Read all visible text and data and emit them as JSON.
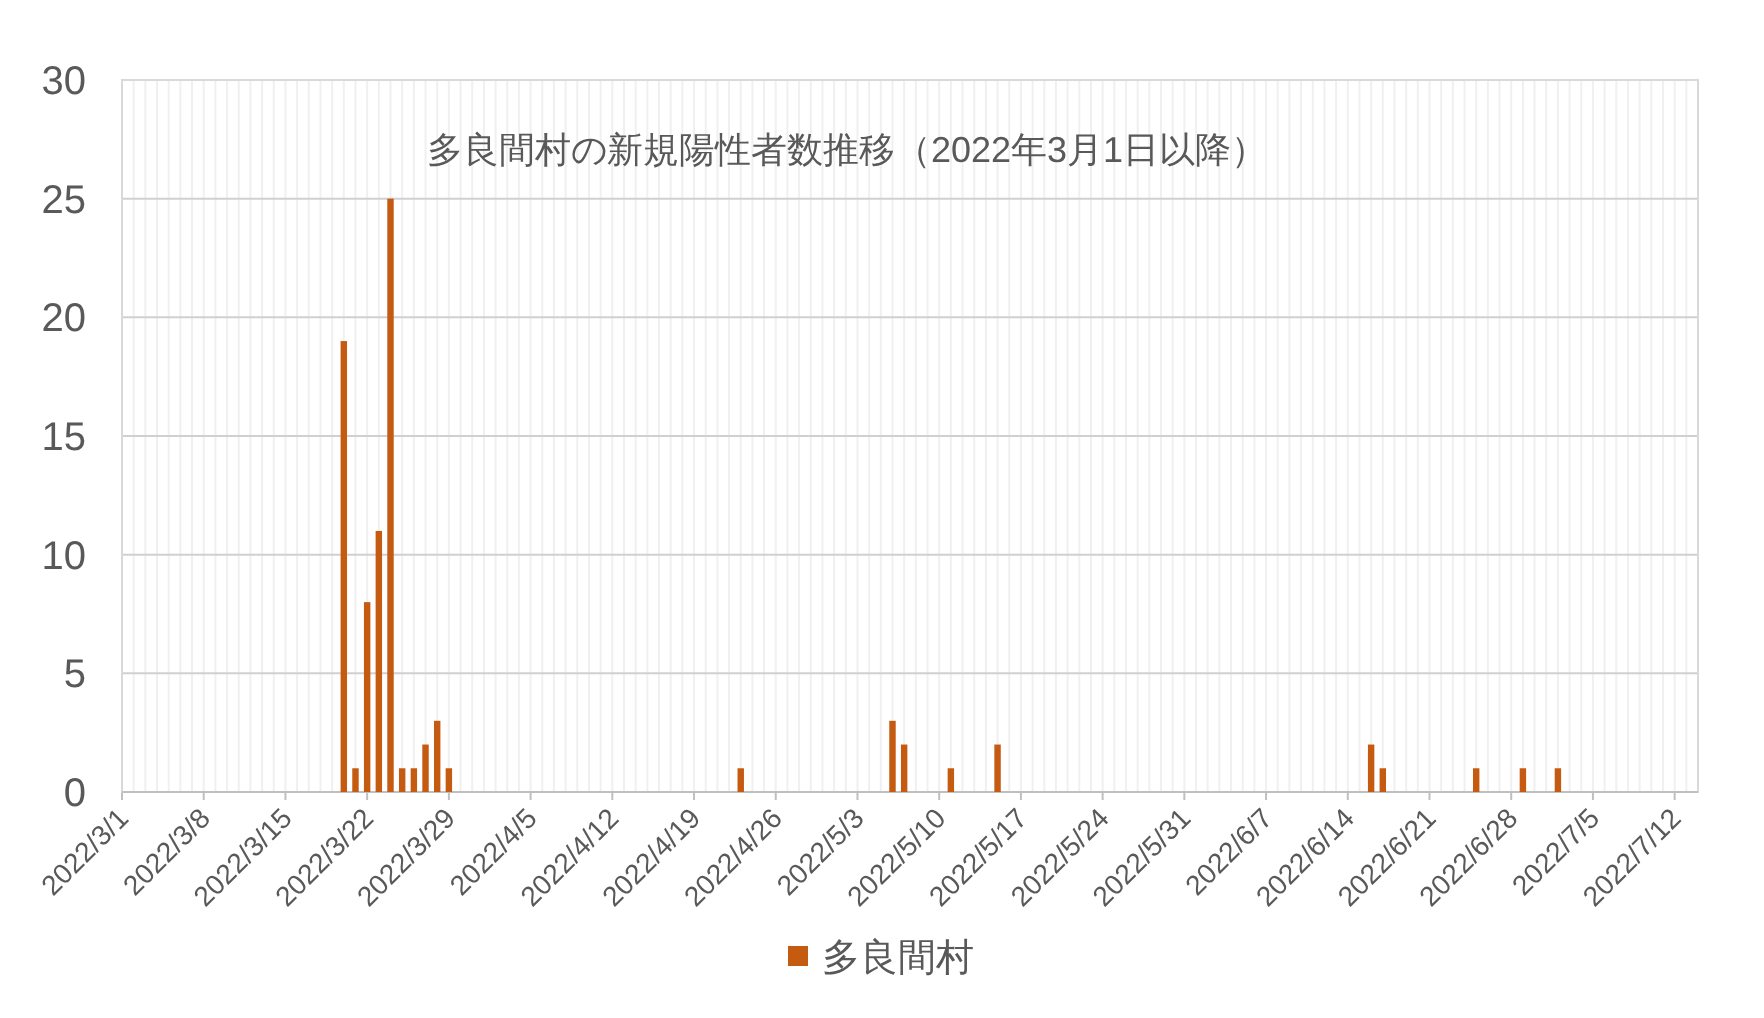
{
  "chart_data": {
    "type": "bar",
    "title": "多良間村の新規陽性者数推移（2022年3月1日以降）",
    "x": [
      "2022-03-20",
      "2022-03-21",
      "2022-03-22",
      "2022-03-23",
      "2022-03-24",
      "2022-03-25",
      "2022-03-26",
      "2022-03-27",
      "2022-03-28",
      "2022-03-29",
      "2022-04-23",
      "2022-05-06",
      "2022-05-07",
      "2022-05-11",
      "2022-05-15",
      "2022-06-16",
      "2022-06-17",
      "2022-06-25",
      "2022-06-29",
      "2022-07-02"
    ],
    "series": [
      {
        "name": "多良間村",
        "color": "#c55a11",
        "values": [
          19,
          1,
          8,
          11,
          25,
          1,
          1,
          2,
          3,
          1,
          1,
          3,
          2,
          1,
          2,
          2,
          1,
          1,
          1,
          1
        ]
      }
    ],
    "xlim": [
      "2022-03-01",
      "2022-07-14"
    ],
    "xticks": [
      {
        "value": "2022-03-01",
        "label": "2022/3/1"
      },
      {
        "value": "2022-03-08",
        "label": "2022/3/8"
      },
      {
        "value": "2022-03-15",
        "label": "2022/3/15"
      },
      {
        "value": "2022-03-22",
        "label": "2022/3/22"
      },
      {
        "value": "2022-03-29",
        "label": "2022/3/29"
      },
      {
        "value": "2022-04-05",
        "label": "2022/4/5"
      },
      {
        "value": "2022-04-12",
        "label": "2022/4/12"
      },
      {
        "value": "2022-04-19",
        "label": "2022/4/19"
      },
      {
        "value": "2022-04-26",
        "label": "2022/4/26"
      },
      {
        "value": "2022-05-03",
        "label": "2022/5/3"
      },
      {
        "value": "2022-05-10",
        "label": "2022/5/10"
      },
      {
        "value": "2022-05-17",
        "label": "2022/5/17"
      },
      {
        "value": "2022-05-24",
        "label": "2022/5/24"
      },
      {
        "value": "2022-05-31",
        "label": "2022/5/31"
      },
      {
        "value": "2022-06-07",
        "label": "2022/6/7"
      },
      {
        "value": "2022-06-14",
        "label": "2022/6/14"
      },
      {
        "value": "2022-06-21",
        "label": "2022/6/21"
      },
      {
        "value": "2022-06-28",
        "label": "2022/6/28"
      },
      {
        "value": "2022-07-05",
        "label": "2022/7/5"
      },
      {
        "value": "2022-07-12",
        "label": "2022/7/12"
      }
    ],
    "ylim": [
      0,
      30
    ],
    "yticks": [
      0,
      5,
      10,
      15,
      20,
      25,
      30
    ],
    "grid": true,
    "legend": "bottom"
  }
}
